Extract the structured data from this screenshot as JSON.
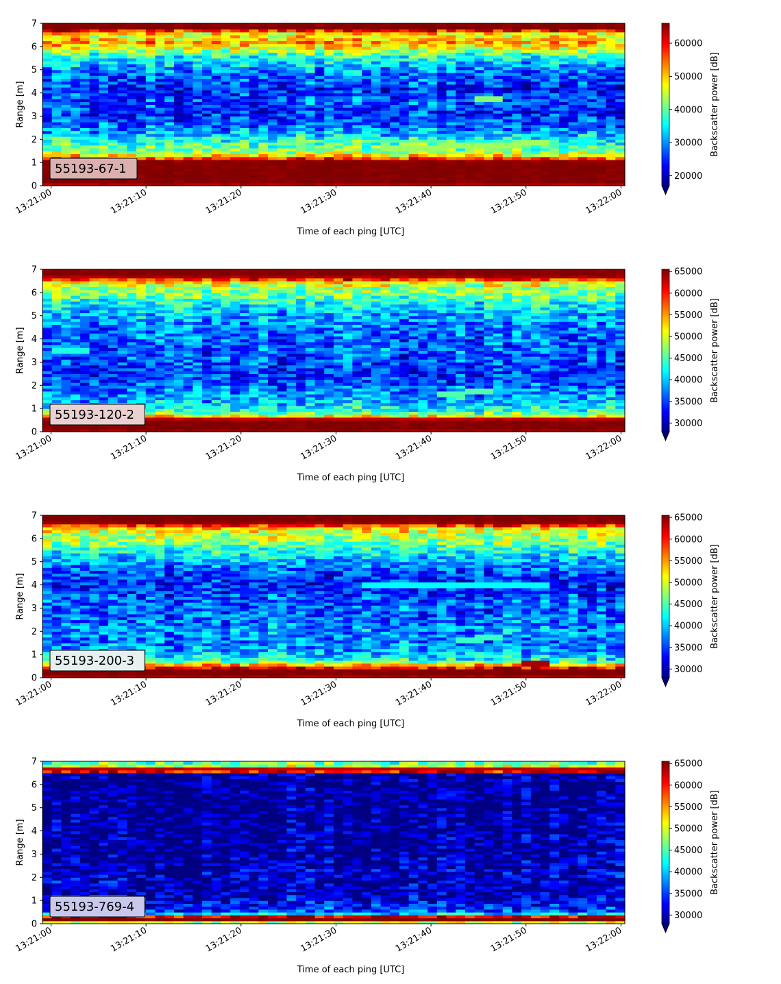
{
  "chart_data": [
    {
      "type": "heatmap",
      "station_label": "55193-67-1",
      "label_box_color": "#ddb0b0",
      "xlabel": "Time of each ping [UTC]",
      "ylabel": "Range [m]",
      "x_ticks": [
        "13:21:00",
        "13:21:10",
        "13:21:20",
        "13:21:30",
        "13:21:40",
        "13:21:50",
        "13:22:00"
      ],
      "y_ticks": [
        "0",
        "1",
        "2",
        "3",
        "4",
        "5",
        "6",
        "7"
      ],
      "ylim": [
        0,
        7
      ],
      "colorbar_label": "Backscatter power [dB]",
      "colorbar_ticks": [
        "20000",
        "30000",
        "40000",
        "50000",
        "60000"
      ],
      "colorbar_range": [
        17000,
        66000
      ],
      "colormap": "jet",
      "profile": [
        [
          0.0,
          60000
        ],
        [
          0.1,
          66000
        ],
        [
          0.25,
          66000
        ],
        [
          0.9,
          66000
        ],
        [
          1.05,
          66000
        ],
        [
          1.15,
          60000
        ],
        [
          1.25,
          52000
        ],
        [
          1.45,
          43000
        ],
        [
          1.7,
          40000
        ],
        [
          2.0,
          37000
        ],
        [
          2.2,
          33000
        ],
        [
          2.5,
          29000
        ],
        [
          2.8,
          27000
        ],
        [
          3.2,
          25000
        ],
        [
          3.5,
          27000
        ],
        [
          3.9,
          26000
        ],
        [
          4.2,
          24000
        ],
        [
          4.5,
          27000
        ],
        [
          5.0,
          30000
        ],
        [
          5.4,
          34000
        ],
        [
          5.7,
          40000
        ],
        [
          5.95,
          48000
        ],
        [
          6.2,
          52000
        ],
        [
          6.45,
          48000
        ],
        [
          6.6,
          50000
        ],
        [
          6.72,
          62000
        ],
        [
          6.8,
          66000
        ],
        [
          7.0,
          66000
        ]
      ],
      "features": [
        {
          "t0": 35,
          "t1": 52,
          "r0": 1.6,
          "r1": 1.85,
          "value": 43000
        },
        {
          "t0": 45,
          "t1": 48,
          "r0": 3.8,
          "r1": 3.8,
          "value": 42000
        }
      ]
    },
    {
      "type": "heatmap",
      "station_label": "55193-120-2",
      "label_box_color": "#ead0d0",
      "xlabel": "Time of each ping [UTC]",
      "ylabel": "Range [m]",
      "x_ticks": [
        "13:21:00",
        "13:21:10",
        "13:21:20",
        "13:21:30",
        "13:21:40",
        "13:21:50",
        "13:22:00"
      ],
      "y_ticks": [
        "0",
        "1",
        "2",
        "3",
        "4",
        "5",
        "6",
        "7"
      ],
      "ylim": [
        0,
        7
      ],
      "colorbar_label": "Backscatter power [dB]",
      "colorbar_ticks": [
        "30000",
        "35000",
        "40000",
        "45000",
        "50000",
        "55000",
        "60000",
        "65000"
      ],
      "colorbar_range": [
        28000,
        65500
      ],
      "colormap": "jet",
      "profile": [
        [
          0.0,
          64000
        ],
        [
          0.15,
          65500
        ],
        [
          0.45,
          65500
        ],
        [
          0.6,
          62000
        ],
        [
          0.7,
          50000
        ],
        [
          0.85,
          44000
        ],
        [
          1.1,
          41000
        ],
        [
          1.4,
          39000
        ],
        [
          1.8,
          37000
        ],
        [
          2.2,
          35000
        ],
        [
          2.6,
          34000
        ],
        [
          3.0,
          35000
        ],
        [
          3.5,
          36000
        ],
        [
          4.0,
          36000
        ],
        [
          4.5,
          37000
        ],
        [
          5.0,
          39000
        ],
        [
          5.5,
          42000
        ],
        [
          5.9,
          46000
        ],
        [
          6.2,
          48000
        ],
        [
          6.5,
          52000
        ],
        [
          6.6,
          62000
        ],
        [
          6.75,
          65500
        ],
        [
          7.0,
          65500
        ]
      ],
      "features": [
        {
          "t0": 41,
          "t1": 47,
          "r0": 1.6,
          "r1": 1.8,
          "value": 45000
        },
        {
          "t0": 0,
          "t1": 4,
          "r0": 3.5,
          "r1": 3.5,
          "value": 43000
        }
      ]
    },
    {
      "type": "heatmap",
      "station_label": "55193-200-3",
      "label_box_color": "#e6f0f0",
      "xlabel": "Time of each ping [UTC]",
      "ylabel": "Range [m]",
      "x_ticks": [
        "13:21:00",
        "13:21:10",
        "13:21:20",
        "13:21:30",
        "13:21:40",
        "13:21:50",
        "13:22:00"
      ],
      "y_ticks": [
        "0",
        "1",
        "2",
        "3",
        "4",
        "5",
        "6",
        "7"
      ],
      "ylim": [
        0,
        7
      ],
      "colorbar_label": "Backscatter power [dB]",
      "colorbar_ticks": [
        "30000",
        "35000",
        "40000",
        "45000",
        "50000",
        "55000",
        "60000",
        "65000"
      ],
      "colorbar_range": [
        28000,
        65500
      ],
      "colormap": "jet",
      "profile": [
        [
          0.0,
          62000
        ],
        [
          0.1,
          65500
        ],
        [
          0.35,
          65500
        ],
        [
          0.5,
          58000
        ],
        [
          0.65,
          48000
        ],
        [
          0.8,
          42000
        ],
        [
          1.1,
          39000
        ],
        [
          1.5,
          37000
        ],
        [
          2.0,
          38000
        ],
        [
          2.5,
          36000
        ],
        [
          3.0,
          36000
        ],
        [
          3.5,
          35000
        ],
        [
          4.0,
          33000
        ],
        [
          4.5,
          35000
        ],
        [
          5.0,
          38000
        ],
        [
          5.5,
          43000
        ],
        [
          5.9,
          47000
        ],
        [
          6.2,
          49000
        ],
        [
          6.5,
          53000
        ],
        [
          6.6,
          62000
        ],
        [
          6.72,
          65500
        ],
        [
          7.0,
          65500
        ]
      ],
      "features": [
        {
          "t0": 33,
          "t1": 52,
          "r0": 4.0,
          "r1": 4.05,
          "value": 42000
        },
        {
          "t0": 43,
          "t1": 48,
          "r0": 1.6,
          "r1": 1.8,
          "value": 44000
        },
        {
          "t0": 50,
          "t1": 52,
          "r0": 0.65,
          "r1": 0.65,
          "value": 64000
        }
      ]
    },
    {
      "type": "heatmap",
      "station_label": "55193-769-4",
      "label_box_color": "#c8c8ee",
      "xlabel": "Time of each ping [UTC]",
      "ylabel": "Range [m]",
      "x_ticks": [
        "13:21:00",
        "13:21:10",
        "13:21:20",
        "13:21:30",
        "13:21:40",
        "13:21:50",
        "13:22:00"
      ],
      "y_ticks": [
        "0",
        "1",
        "2",
        "3",
        "4",
        "5",
        "6",
        "7"
      ],
      "ylim": [
        0,
        7
      ],
      "colorbar_label": "Backscatter power [dB]",
      "colorbar_ticks": [
        "30000",
        "35000",
        "40000",
        "45000",
        "50000",
        "55000",
        "60000",
        "65000"
      ],
      "colorbar_range": [
        28000,
        65500
      ],
      "colormap": "jet",
      "profile": [
        [
          0.0,
          42000
        ],
        [
          0.1,
          55000
        ],
        [
          0.18,
          65500
        ],
        [
          0.3,
          65500
        ],
        [
          0.38,
          45000
        ],
        [
          0.5,
          36000
        ],
        [
          0.8,
          33000
        ],
        [
          1.2,
          31000
        ],
        [
          1.6,
          30000
        ],
        [
          2.0,
          31000
        ],
        [
          2.5,
          30000
        ],
        [
          3.0,
          29500
        ],
        [
          4.0,
          29000
        ],
        [
          5.0,
          28500
        ],
        [
          6.0,
          28500
        ],
        [
          6.45,
          29000
        ],
        [
          6.52,
          58000
        ],
        [
          6.62,
          65500
        ],
        [
          6.72,
          62000
        ],
        [
          6.82,
          48000
        ],
        [
          7.0,
          44000
        ]
      ],
      "features": [
        {
          "t0": 4,
          "t1": 8,
          "r0": 1.1,
          "r1": 1.1,
          "value": 38000
        }
      ]
    }
  ]
}
